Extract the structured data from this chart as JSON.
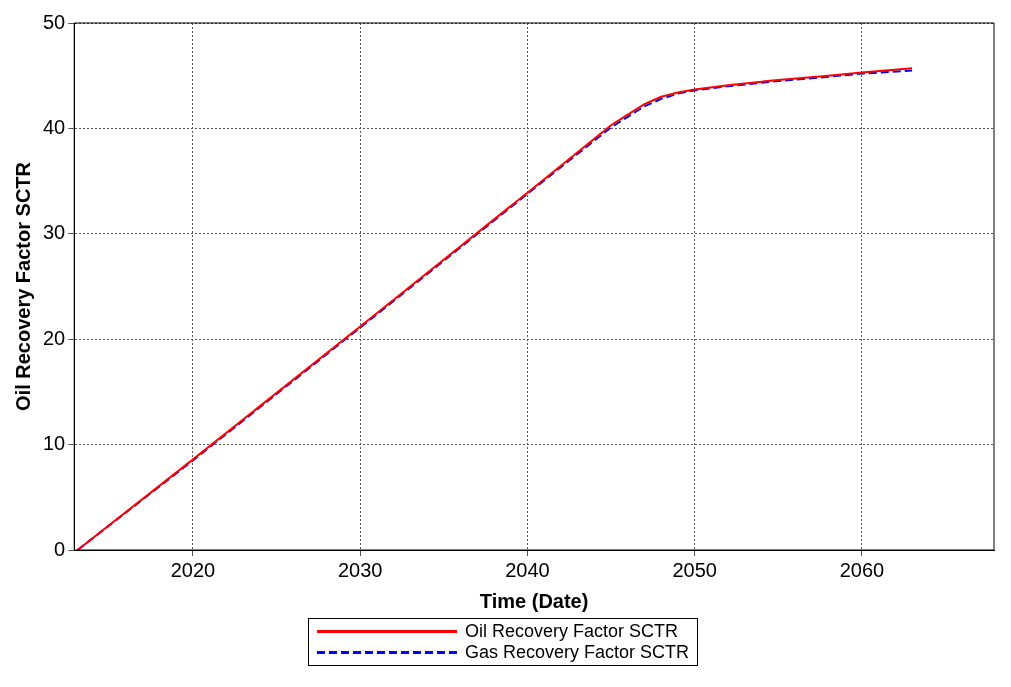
{
  "chart_data": {
    "type": "line",
    "xlabel": "Time (Date)",
    "ylabel": "Oil Recovery Factor SCTR",
    "xlim": [
      2012.9,
      2067.9
    ],
    "xticks": [
      2020,
      2030,
      2040,
      2050,
      2060
    ],
    "ylim": [
      0,
      50
    ],
    "yticks": [
      0,
      10,
      20,
      30,
      40,
      50
    ],
    "grid": true,
    "legend": "bottom",
    "marker": "none",
    "series": [
      {
        "name": "Oil Recovery Factor SCTR",
        "color": "#ff0000",
        "line_style": "solid",
        "x": [
          2013.1,
          2020,
          2030,
          2040,
          2045,
          2046,
          2047,
          2048,
          2049,
          2050,
          2052,
          2055,
          2058,
          2060,
          2063
        ],
        "values": [
          0,
          8.6,
          21.2,
          33.9,
          40.3,
          41.3,
          42.3,
          43.0,
          43.4,
          43.7,
          44.1,
          44.6,
          45.0,
          45.3,
          45.7
        ]
      },
      {
        "name": "Gas Recovery Factor SCTR",
        "color": "#0000ff",
        "line_style": "dashed",
        "x": [
          2013.1,
          2020,
          2030,
          2040,
          2045,
          2046,
          2047,
          2048,
          2049,
          2050,
          2052,
          2055,
          2058,
          2060,
          2063
        ],
        "values": [
          0,
          8.5,
          21.1,
          33.8,
          40.1,
          41.1,
          42.1,
          42.8,
          43.3,
          43.6,
          44.0,
          44.5,
          44.9,
          45.2,
          45.5
        ]
      }
    ]
  }
}
